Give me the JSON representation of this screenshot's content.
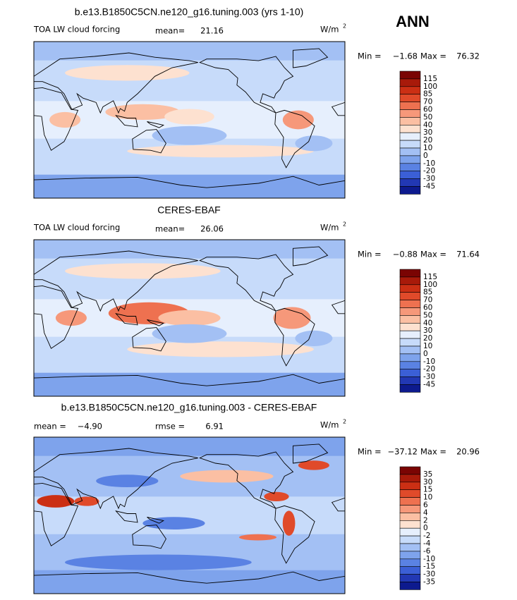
{
  "season": "ANN",
  "min_label": "Min =",
  "max_label": "Max =",
  "colorbar_colors": [
    "#7a0403",
    "#a81a0a",
    "#cb2f14",
    "#e04a2a",
    "#ee7150",
    "#f6987a",
    "#fbbfa3",
    "#fde1d0",
    "#e6effd",
    "#c7dbfa",
    "#a3c0f4",
    "#7ea3ec",
    "#5a82e3",
    "#3b5fd6",
    "#2238b4",
    "#0d1a8e"
  ],
  "panels": [
    {
      "title": "b.e13.B1850C5CN.ne120_g16.tuning.003 (yrs 1-10)",
      "variable": "TOA LW cloud forcing",
      "stats": [
        {
          "label": "mean=",
          "value": "21.16"
        }
      ],
      "units": "W/m",
      "units_power": "2",
      "min": "−1.68",
      "max": "76.32",
      "levels": [
        115,
        100,
        85,
        70,
        60,
        50,
        40,
        30,
        20,
        10,
        0,
        -10,
        -20,
        -30,
        -45
      ]
    },
    {
      "title": "CERES-EBAF",
      "variable": "TOA LW cloud forcing",
      "stats": [
        {
          "label": "mean=",
          "value": "26.06"
        }
      ],
      "units": "W/m",
      "units_power": "2",
      "min": "−0.88",
      "max": "71.64",
      "levels": [
        115,
        100,
        85,
        70,
        60,
        50,
        40,
        30,
        20,
        10,
        0,
        -10,
        -20,
        -30,
        -45
      ]
    },
    {
      "title": "b.e13.B1850C5CN.ne120_g16.tuning.003 - CERES-EBAF",
      "stats": [
        {
          "label": "mean =",
          "value": "−4.90"
        },
        {
          "label": "rmse =",
          "value": "6.91"
        }
      ],
      "units": "W/m",
      "units_power": "2",
      "min": "−37.12",
      "max": "20.96",
      "levels": [
        35,
        30,
        15,
        10,
        6,
        4,
        2,
        0,
        -2,
        -4,
        -6,
        -10,
        -15,
        -30,
        -35
      ]
    }
  ]
}
